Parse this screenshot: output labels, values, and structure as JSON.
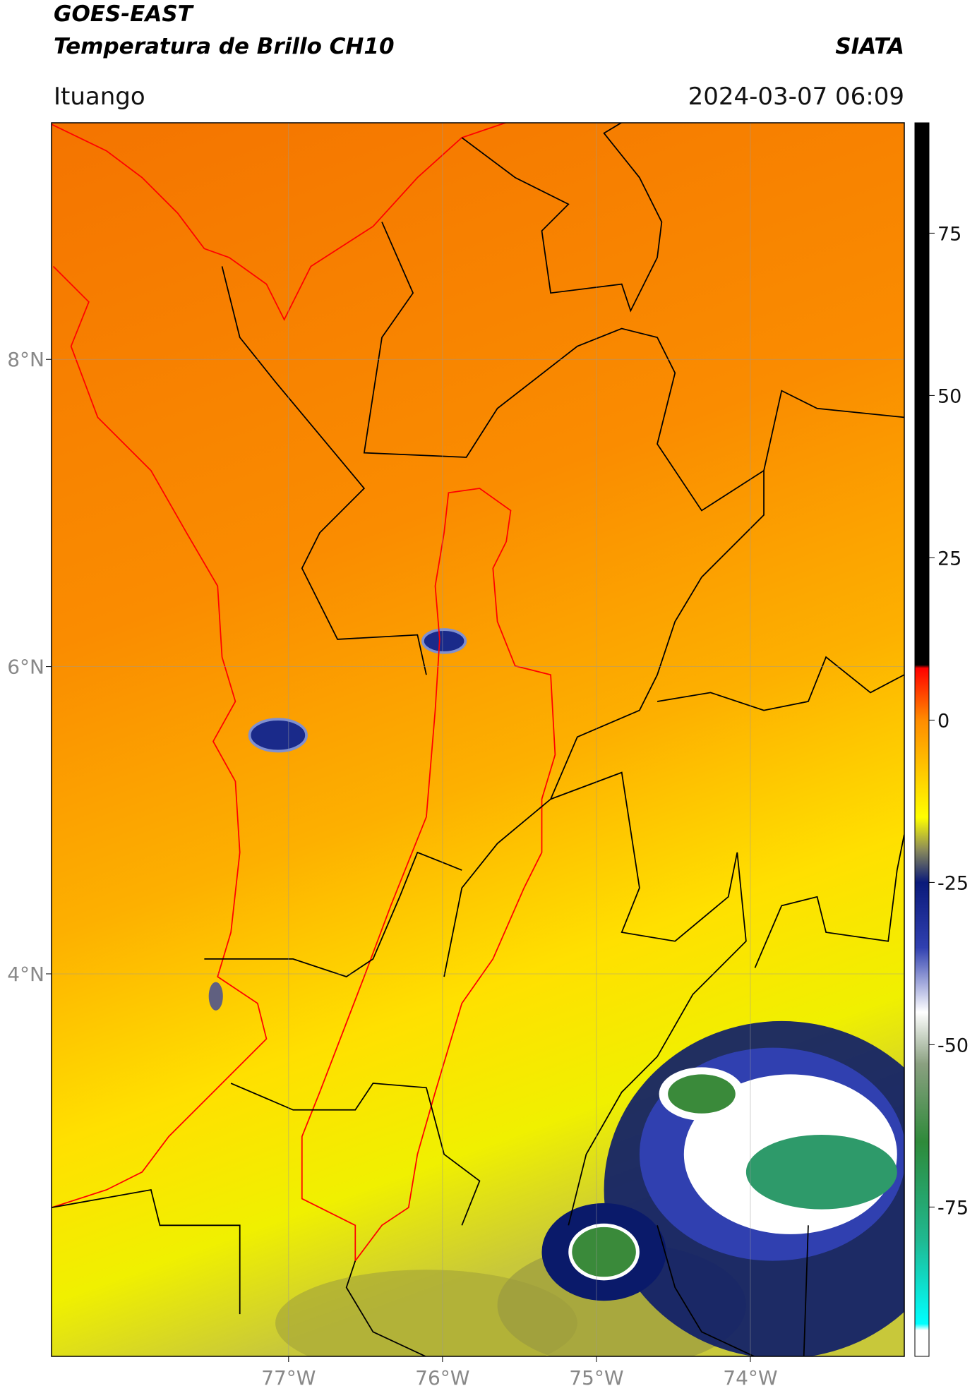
{
  "header": {
    "title": "GOES-EAST",
    "subtitle": "Temperatura de Brillo CH10",
    "source": "SIATA",
    "region": "Ituango",
    "datetime": "2024-03-07 06:09"
  },
  "map": {
    "xlim": [
      -78.54,
      -73.0
    ],
    "ylim": [
      1.51,
      9.54
    ],
    "xticks": [
      {
        "value": -77,
        "label": "77°W"
      },
      {
        "value": -76,
        "label": "76°W"
      },
      {
        "value": -75,
        "label": "75°W"
      },
      {
        "value": -74,
        "label": "74°W"
      }
    ],
    "yticks": [
      {
        "value": 8,
        "label": "8°N"
      },
      {
        "value": 6,
        "label": "6°N"
      },
      {
        "value": 4,
        "label": "4°N"
      }
    ],
    "grid": true
  },
  "colorbar": {
    "lim": [
      -98,
      92
    ],
    "ticks": [
      75,
      50,
      25,
      0,
      -25,
      -50,
      -75
    ],
    "stops": [
      {
        "value": 92,
        "color": "#000000"
      },
      {
        "value": 8.5,
        "color": "#000000"
      },
      {
        "value": 8,
        "color": "#ff0000"
      },
      {
        "value": 0,
        "color": "#ff8c00"
      },
      {
        "value": -15,
        "color": "#ffff00"
      },
      {
        "value": -20,
        "color": "#8a8a5a"
      },
      {
        "value": -25,
        "color": "#0a1a7a"
      },
      {
        "value": -35,
        "color": "#3040b0"
      },
      {
        "value": -45,
        "color": "#ffffff"
      },
      {
        "value": -53,
        "color": "#8aa080"
      },
      {
        "value": -65,
        "color": "#2e8a3a"
      },
      {
        "value": -80,
        "color": "#20b890"
      },
      {
        "value": -93,
        "color": "#00ffff"
      },
      {
        "value": -94,
        "color": "#ffffff"
      },
      {
        "value": -98,
        "color": "#ffffff"
      }
    ]
  }
}
